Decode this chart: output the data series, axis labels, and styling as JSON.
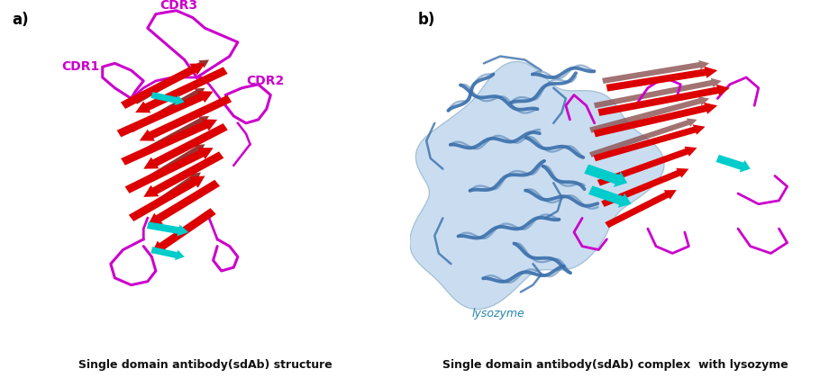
{
  "label_a": "a)",
  "label_b": "b)",
  "caption_a": "Single domain antibody(sdAb) structure",
  "caption_b": "Single domain antibody(sdAb) complex  with lysozyme",
  "cdr1_label": "CDR1",
  "cdr2_label": "CDR2",
  "cdr3_label": "CDR3",
  "lysozyme_label": "lysozyme",
  "label_color": "#000000",
  "cdr_color": "#CC00CC",
  "caption_fontsize": 9,
  "label_fontsize": 12,
  "cdr_fontsize": 10,
  "lysozyme_fontsize": 9,
  "bg_color": "#FFFFFF",
  "red_color": "#DD0000",
  "dark_red_color": "#993333",
  "cyan_color": "#00CCCC",
  "magenta_color": "#CC00CC",
  "blue_color": "#3A6FAA",
  "light_blue_color": "#AECCE8",
  "brown_color": "#8B5050"
}
